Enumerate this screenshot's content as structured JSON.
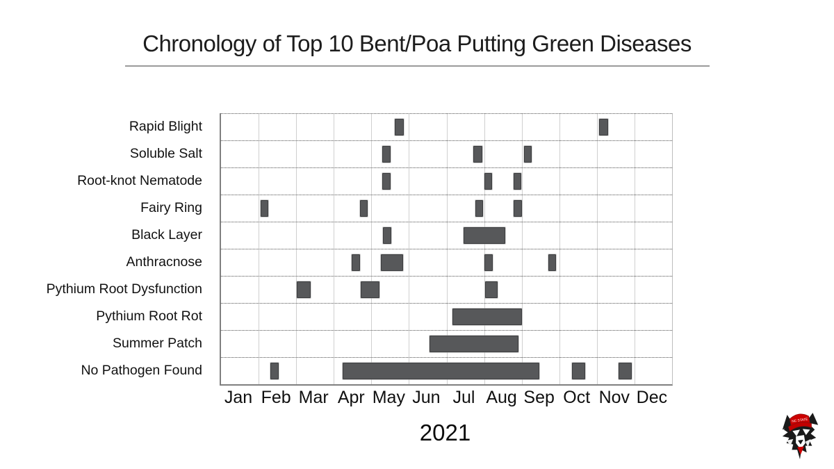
{
  "title": "Chronology of Top 10 Bent/Poa Putting Green Diseases",
  "year_label": "2021",
  "logo": {
    "name": "NC State wolf head logo",
    "cap_text": "NC STATE",
    "colors": {
      "red": "#cc0000",
      "black": "#1a1a1a",
      "white": "#ffffff"
    }
  },
  "chart_data": {
    "type": "bar",
    "subtype": "gantt-timeline",
    "title": "Chronology of Top 10 Bent/Poa Putting Green Diseases",
    "xlabel": "2021",
    "x_axis": {
      "unit": "month",
      "range": [
        0,
        12
      ],
      "tick_labels": [
        "Jan",
        "Feb",
        "Mar",
        "Apr",
        "May",
        "Jun",
        "Jul",
        "Aug",
        "Sep",
        "Oct",
        "Nov",
        "Dec"
      ]
    },
    "layout": {
      "grid": "solid vertical month lines, dotted horizontal row separators",
      "bar_color": "#57585a",
      "bar_border_color": "#3c3d3f",
      "axis_color": "#7f7f7f",
      "vline_color": "#cfcfcf",
      "legend": "none"
    },
    "rows": [
      {
        "label": "Rapid Blight",
        "bars": [
          {
            "start": 4.63,
            "end": 4.86
          },
          {
            "start": 10.06,
            "end": 10.3
          }
        ]
      },
      {
        "label": "Soluble Salt",
        "bars": [
          {
            "start": 4.29,
            "end": 4.51
          },
          {
            "start": 6.71,
            "end": 6.95
          },
          {
            "start": 8.06,
            "end": 8.27
          }
        ]
      },
      {
        "label": "Root-knot Nematode",
        "bars": [
          {
            "start": 4.29,
            "end": 4.51
          },
          {
            "start": 7.01,
            "end": 7.22
          },
          {
            "start": 7.78,
            "end": 7.99
          }
        ]
      },
      {
        "label": "Fairy Ring",
        "bars": [
          {
            "start": 1.05,
            "end": 1.26
          },
          {
            "start": 3.7,
            "end": 3.91
          },
          {
            "start": 6.76,
            "end": 6.97
          },
          {
            "start": 7.79,
            "end": 8.01
          }
        ]
      },
      {
        "label": "Black Layer",
        "bars": [
          {
            "start": 4.31,
            "end": 4.53
          },
          {
            "start": 6.46,
            "end": 7.56
          }
        ]
      },
      {
        "label": "Anthracnose",
        "bars": [
          {
            "start": 3.48,
            "end": 3.7
          },
          {
            "start": 4.25,
            "end": 4.85
          },
          {
            "start": 7.01,
            "end": 7.23
          },
          {
            "start": 8.7,
            "end": 8.91
          }
        ]
      },
      {
        "label": "Pythium Root Dysfunction",
        "bars": [
          {
            "start": 2.02,
            "end": 2.38
          },
          {
            "start": 3.71,
            "end": 4.22
          },
          {
            "start": 7.02,
            "end": 7.36
          }
        ]
      },
      {
        "label": "Pythium Root Rot",
        "bars": [
          {
            "start": 6.15,
            "end": 8.0
          }
        ]
      },
      {
        "label": "Summer Patch",
        "bars": [
          {
            "start": 5.55,
            "end": 7.91
          }
        ]
      },
      {
        "label": "No Pathogen Found",
        "bars": [
          {
            "start": 1.32,
            "end": 1.54
          },
          {
            "start": 3.23,
            "end": 8.46
          },
          {
            "start": 9.34,
            "end": 9.69
          },
          {
            "start": 10.58,
            "end": 10.93
          }
        ]
      }
    ]
  }
}
